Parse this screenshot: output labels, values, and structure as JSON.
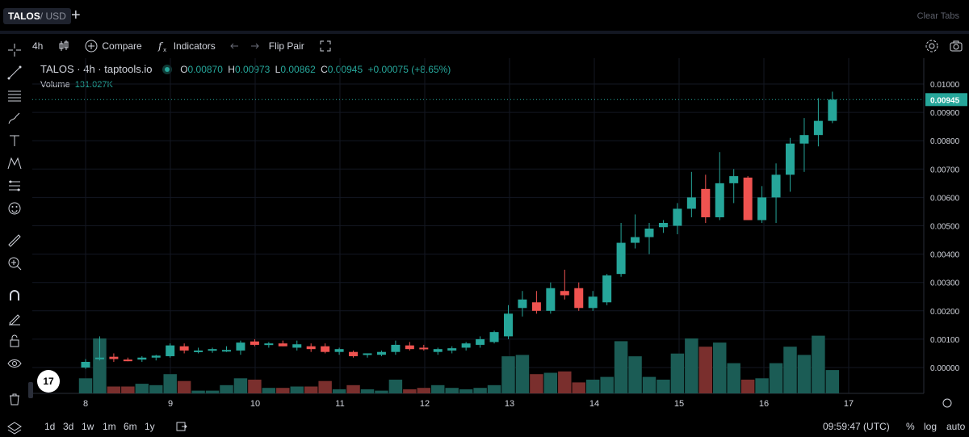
{
  "tab": {
    "base": "TALOS",
    "quote": " / USD",
    "clear_tabs": "Clear Tabs"
  },
  "toolbar": {
    "interval": "4h",
    "compare": "Compare",
    "indicators": "Indicators",
    "flip_pair": "Flip Pair"
  },
  "legend": {
    "symbol": "TALOS · 4h · taptools.io",
    "o_label": "O",
    "open": "0.00870",
    "h_label": "H",
    "high": "0.00973",
    "l_label": "L",
    "low": "0.00862",
    "c_label": "C",
    "close": "0.00945",
    "change": "+0.00075 (+8.65%)",
    "volume_label": "Volume",
    "volume": "131.027K"
  },
  "bottom": {
    "ranges": [
      "1d",
      "3d",
      "1w",
      "1m",
      "6m",
      "1y"
    ],
    "time": "09:59:47 (UTC)",
    "pct": "%",
    "log": "log",
    "auto": "auto"
  },
  "colors": {
    "up": "#26a69a",
    "down": "#ef5350",
    "bg": "#000000"
  },
  "chart_data": {
    "type": "candlestick",
    "title": "TALOS · 4h · taptools.io",
    "x_ticks": [
      "8",
      "9",
      "10",
      "11",
      "12",
      "13",
      "14",
      "15",
      "16",
      "17"
    ],
    "y_ticks": [
      "0.01000",
      "0.00900",
      "0.00800",
      "0.00700",
      "0.00600",
      "0.00500",
      "0.00400",
      "0.00300",
      "0.00200",
      "0.00100",
      "0.00000"
    ],
    "ylim": [
      -0.0005,
      0.0105
    ],
    "current_price": "0.00945",
    "candles": [
      {
        "o": 0.0,
        "h": 0.0003,
        "l": -5e-05,
        "c": 0.0002,
        "v": 0.55
      },
      {
        "o": 0.0003,
        "h": 0.0011,
        "l": 0.00025,
        "c": 0.00035,
        "v": 2.0
      },
      {
        "o": 0.00038,
        "h": 0.0005,
        "l": 0.0002,
        "c": 0.0003,
        "v": 0.25
      },
      {
        "o": 0.00028,
        "h": 0.00035,
        "l": 0.00022,
        "c": 0.00024,
        "v": 0.25
      },
      {
        "o": 0.00028,
        "h": 0.0004,
        "l": 0.0002,
        "c": 0.00035,
        "v": 0.35
      },
      {
        "o": 0.00035,
        "h": 0.00045,
        "l": 0.00025,
        "c": 0.00042,
        "v": 0.3
      },
      {
        "o": 0.0004,
        "h": 0.00085,
        "l": 0.00035,
        "c": 0.00078,
        "v": 0.7
      },
      {
        "o": 0.00075,
        "h": 0.00085,
        "l": 0.0005,
        "c": 0.0006,
        "v": 0.45
      },
      {
        "o": 0.00055,
        "h": 0.0007,
        "l": 0.0005,
        "c": 0.0006,
        "v": 0.1
      },
      {
        "o": 0.0006,
        "h": 0.0007,
        "l": 0.00052,
        "c": 0.00065,
        "v": 0.1
      },
      {
        "o": 0.0006,
        "h": 0.00075,
        "l": 0.00055,
        "c": 0.00062,
        "v": 0.3
      },
      {
        "o": 0.0006,
        "h": 0.00095,
        "l": 0.00045,
        "c": 0.00088,
        "v": 0.55
      },
      {
        "o": 0.00092,
        "h": 0.001,
        "l": 0.00075,
        "c": 0.0008,
        "v": 0.5
      },
      {
        "o": 0.00082,
        "h": 0.0009,
        "l": 0.0007,
        "c": 0.00085,
        "v": 0.2
      },
      {
        "o": 0.00085,
        "h": 0.00095,
        "l": 0.00075,
        "c": 0.00075,
        "v": 0.2
      },
      {
        "o": 0.0007,
        "h": 0.00095,
        "l": 0.0006,
        "c": 0.00082,
        "v": 0.25
      },
      {
        "o": 0.00075,
        "h": 0.00085,
        "l": 0.00055,
        "c": 0.00065,
        "v": 0.25
      },
      {
        "o": 0.00075,
        "h": 0.00085,
        "l": 0.0005,
        "c": 0.00055,
        "v": 0.45
      },
      {
        "o": 0.00055,
        "h": 0.0007,
        "l": 0.00045,
        "c": 0.00065,
        "v": 0.15
      },
      {
        "o": 0.00055,
        "h": 0.0006,
        "l": 0.00035,
        "c": 0.0004,
        "v": 0.3
      },
      {
        "o": 0.00045,
        "h": 0.0005,
        "l": 0.00035,
        "c": 0.0005,
        "v": 0.15
      },
      {
        "o": 0.00045,
        "h": 0.0006,
        "l": 0.0004,
        "c": 0.00055,
        "v": 0.1
      },
      {
        "o": 0.00055,
        "h": 0.00095,
        "l": 0.00045,
        "c": 0.0008,
        "v": 0.5
      },
      {
        "o": 0.00078,
        "h": 0.0009,
        "l": 0.0006,
        "c": 0.00065,
        "v": 0.15
      },
      {
        "o": 0.0007,
        "h": 0.0008,
        "l": 0.0006,
        "c": 0.00065,
        "v": 0.2
      },
      {
        "o": 0.00055,
        "h": 0.0007,
        "l": 0.00045,
        "c": 0.00065,
        "v": 0.3
      },
      {
        "o": 0.0006,
        "h": 0.00075,
        "l": 0.0005,
        "c": 0.00068,
        "v": 0.2
      },
      {
        "o": 0.0007,
        "h": 0.0009,
        "l": 0.0006,
        "c": 0.00085,
        "v": 0.15
      },
      {
        "o": 0.0008,
        "h": 0.0011,
        "l": 0.0007,
        "c": 0.001,
        "v": 0.2
      },
      {
        "o": 0.0009,
        "h": 0.0013,
        "l": 0.00085,
        "c": 0.00125,
        "v": 0.3
      },
      {
        "o": 0.0011,
        "h": 0.0022,
        "l": 0.001,
        "c": 0.0019,
        "v": 1.35
      },
      {
        "o": 0.0021,
        "h": 0.0027,
        "l": 0.0018,
        "c": 0.0024,
        "v": 1.4
      },
      {
        "o": 0.0023,
        "h": 0.0027,
        "l": 0.0019,
        "c": 0.002,
        "v": 0.7
      },
      {
        "o": 0.002,
        "h": 0.003,
        "l": 0.0019,
        "c": 0.0028,
        "v": 0.75
      },
      {
        "o": 0.0027,
        "h": 0.00345,
        "l": 0.0024,
        "c": 0.00255,
        "v": 0.8
      },
      {
        "o": 0.0028,
        "h": 0.003,
        "l": 0.002,
        "c": 0.0021,
        "v": 0.4
      },
      {
        "o": 0.0021,
        "h": 0.0027,
        "l": 0.002,
        "c": 0.0025,
        "v": 0.5
      },
      {
        "o": 0.0023,
        "h": 0.0033,
        "l": 0.0022,
        "c": 0.00325,
        "v": 0.6
      },
      {
        "o": 0.0033,
        "h": 0.0051,
        "l": 0.0032,
        "c": 0.0044,
        "v": 1.9
      },
      {
        "o": 0.0044,
        "h": 0.0054,
        "l": 0.0042,
        "c": 0.0046,
        "v": 1.35
      },
      {
        "o": 0.0046,
        "h": 0.0051,
        "l": 0.004,
        "c": 0.0049,
        "v": 0.6
      },
      {
        "o": 0.00495,
        "h": 0.0052,
        "l": 0.00475,
        "c": 0.0051,
        "v": 0.5
      },
      {
        "o": 0.005,
        "h": 0.0058,
        "l": 0.0047,
        "c": 0.0056,
        "v": 1.45
      },
      {
        "o": 0.0056,
        "h": 0.0069,
        "l": 0.0053,
        "c": 0.006,
        "v": 2.0
      },
      {
        "o": 0.0063,
        "h": 0.0068,
        "l": 0.0051,
        "c": 0.0053,
        "v": 1.7
      },
      {
        "o": 0.0053,
        "h": 0.0076,
        "l": 0.0052,
        "c": 0.0065,
        "v": 1.85
      },
      {
        "o": 0.0065,
        "h": 0.007,
        "l": 0.0058,
        "c": 0.00675,
        "v": 1.1
      },
      {
        "o": 0.0067,
        "h": 0.00675,
        "l": 0.0052,
        "c": 0.0052,
        "v": 0.5
      },
      {
        "o": 0.0052,
        "h": 0.0064,
        "l": 0.0051,
        "c": 0.006,
        "v": 0.55
      },
      {
        "o": 0.006,
        "h": 0.0072,
        "l": 0.0051,
        "c": 0.0068,
        "v": 1.1
      },
      {
        "o": 0.0068,
        "h": 0.0081,
        "l": 0.0062,
        "c": 0.0079,
        "v": 1.7
      },
      {
        "o": 0.0079,
        "h": 0.0088,
        "l": 0.0069,
        "c": 0.0082,
        "v": 1.4
      },
      {
        "o": 0.0082,
        "h": 0.0095,
        "l": 0.0078,
        "c": 0.0087,
        "v": 2.1
      },
      {
        "o": 0.0087,
        "h": 0.00973,
        "l": 0.00862,
        "c": 0.00945,
        "v": 0.85
      }
    ]
  }
}
